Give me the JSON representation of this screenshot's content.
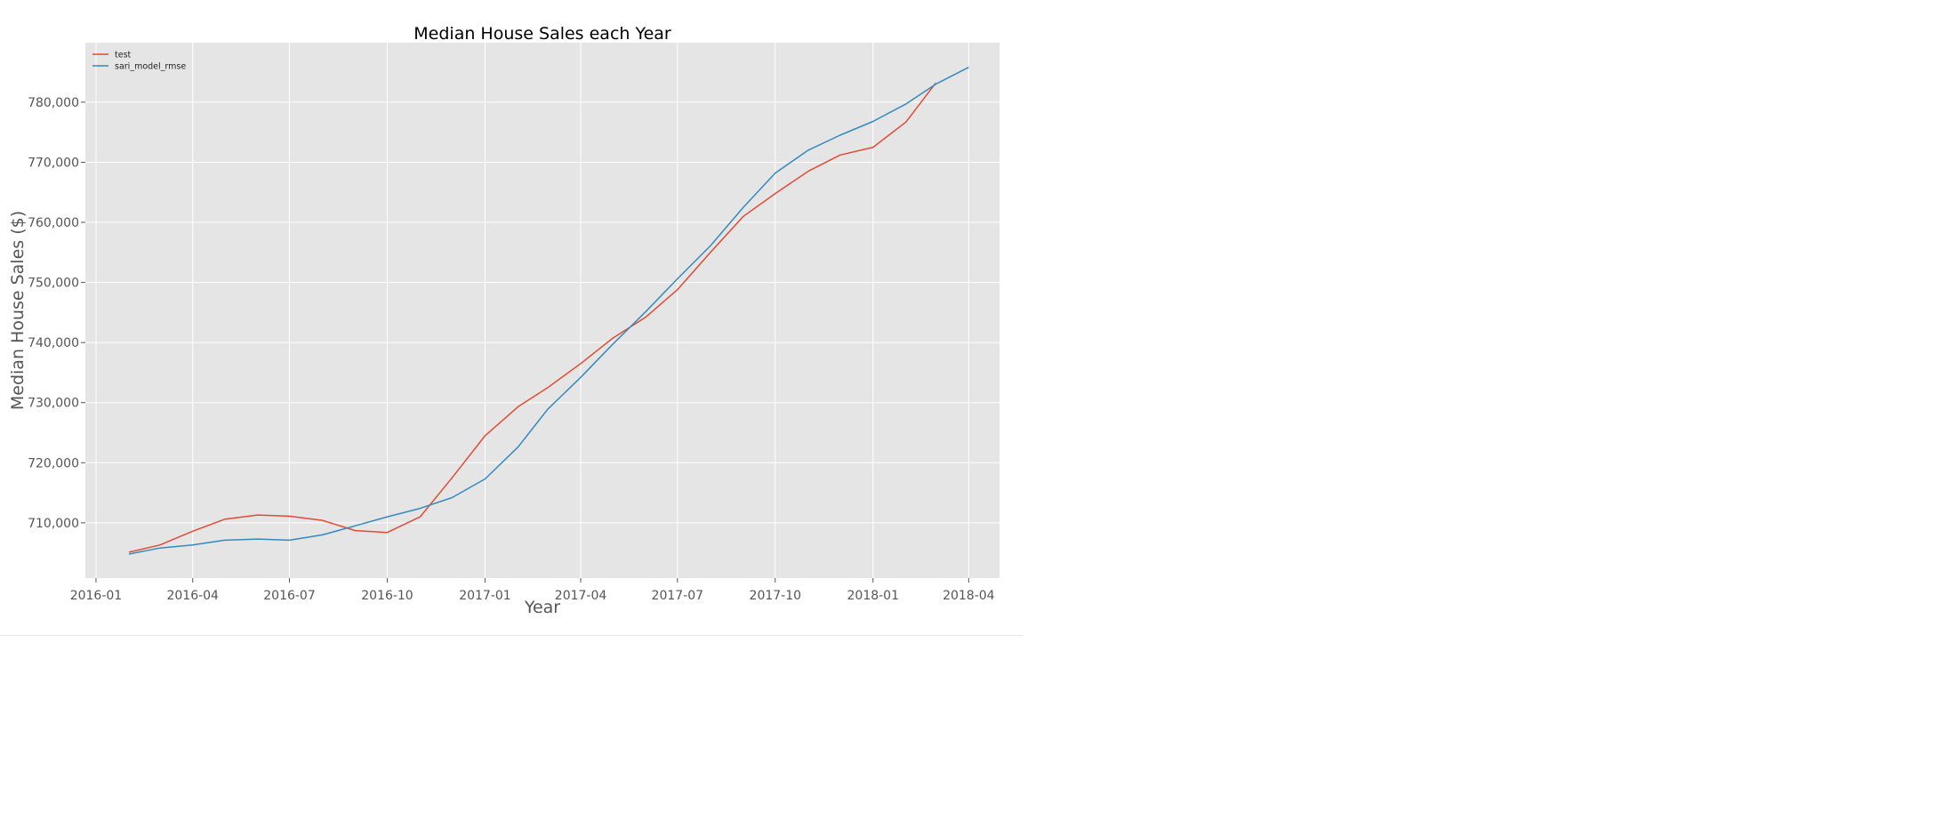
{
  "chart_data": {
    "type": "line",
    "title": "Median House Sales each Year",
    "xlabel": "Year",
    "ylabel": "Median House Sales ($)",
    "x_ticks": [
      "2016-01",
      "2016-04",
      "2016-07",
      "2016-10",
      "2017-01",
      "2017-04",
      "2017-07",
      "2017-10",
      "2018-01",
      "2018-04"
    ],
    "y_ticks": [
      "710,000",
      "720,000",
      "730,000",
      "740,000",
      "750,000",
      "760,000",
      "770,000",
      "780,000"
    ],
    "y_tick_values": [
      710000,
      720000,
      730000,
      740000,
      750000,
      760000,
      770000,
      780000
    ],
    "xlim": [
      "2015-12-22",
      "2018-04-30"
    ],
    "ylim": [
      700800,
      789900
    ],
    "grid": true,
    "legend_position": "top-left",
    "series": [
      {
        "name": "test",
        "color": "#e24a33",
        "dates": [
          "2016-02-01",
          "2016-03-01",
          "2016-04-01",
          "2016-05-01",
          "2016-06-01",
          "2016-07-01",
          "2016-08-01",
          "2016-09-01",
          "2016-10-01",
          "2016-11-01",
          "2016-12-01",
          "2017-01-01",
          "2017-02-01",
          "2017-03-01",
          "2017-04-01",
          "2017-05-01",
          "2017-06-01",
          "2017-07-01",
          "2017-08-01",
          "2017-09-01",
          "2017-10-01",
          "2017-11-01",
          "2017-12-01",
          "2018-01-01",
          "2018-02-01",
          "2018-03-01"
        ],
        "values": [
          705100,
          706300,
          708600,
          710600,
          711300,
          711100,
          710400,
          708700,
          708400,
          711000,
          717500,
          724500,
          729300,
          732500,
          736500,
          740700,
          744200,
          748800,
          755000,
          761000,
          764800,
          768500,
          771200,
          772500,
          776700,
          783200
        ]
      },
      {
        "name": "sari_model_rmse",
        "color": "#348abd",
        "dates": [
          "2016-02-01",
          "2016-03-01",
          "2016-04-01",
          "2016-05-01",
          "2016-06-01",
          "2016-07-01",
          "2016-08-01",
          "2016-09-01",
          "2016-10-01",
          "2016-11-01",
          "2016-12-01",
          "2017-01-01",
          "2017-02-01",
          "2017-03-01",
          "2017-04-01",
          "2017-05-01",
          "2017-06-01",
          "2017-07-01",
          "2017-08-01",
          "2017-09-01",
          "2017-10-01",
          "2017-11-01",
          "2017-12-01",
          "2018-01-01",
          "2018-02-01",
          "2018-03-01",
          "2018-04-01"
        ],
        "values": [
          704800,
          705800,
          706300,
          707100,
          707300,
          707100,
          708000,
          709500,
          711000,
          712400,
          714200,
          717300,
          722600,
          728900,
          734200,
          739700,
          745100,
          750600,
          756100,
          762500,
          768200,
          772000,
          774500,
          776800,
          779700,
          783000,
          785800
        ]
      }
    ]
  }
}
